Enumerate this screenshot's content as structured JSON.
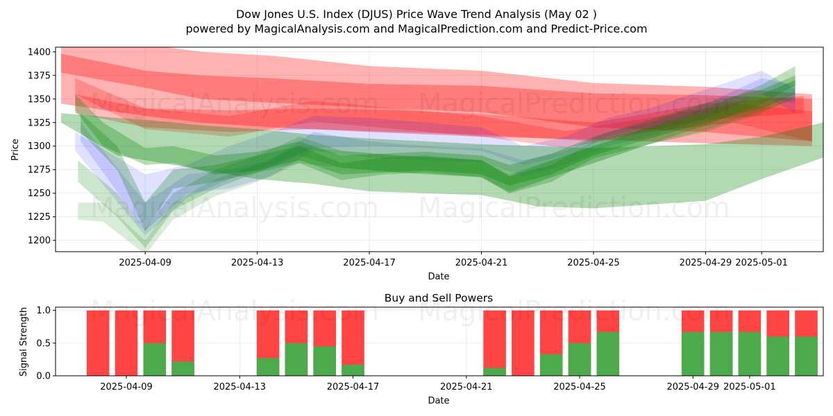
{
  "chart_data": [
    {
      "type": "area",
      "title_line1": "Dow Jones U.S. Index (DJUS) Price Wave Trend Analysis (May 02 )",
      "title_line2": "powered by MagicalAnalysis.com and MagicalPrediction.com and Predict-Price.com",
      "xlabel": "Date",
      "ylabel": "Price",
      "ylim": [
        1188,
        1405
      ],
      "yticks": [
        1200,
        1225,
        1250,
        1275,
        1300,
        1325,
        1350,
        1375,
        1400
      ],
      "x_range_days": [
        -3.2,
        24.2
      ],
      "xticks": [
        {
          "day": 0,
          "label": "2025-04-09"
        },
        {
          "day": 4,
          "label": "2025-04-13"
        },
        {
          "day": 8,
          "label": "2025-04-17"
        },
        {
          "day": 12,
          "label": "2025-04-21"
        },
        {
          "day": 16,
          "label": "2025-04-25"
        },
        {
          "day": 20,
          "label": "2025-04-29"
        },
        {
          "day": 22,
          "label": "2025-05-01"
        }
      ],
      "watermarks": [
        "MagicalAnalysis.com",
        "MagicalPrediction.com"
      ],
      "bands": [
        {
          "color": "#ff0000",
          "opacity": 0.3,
          "x": [
            -3,
            0,
            2,
            4.5,
            8,
            12,
            16,
            20,
            23.8
          ],
          "upper": [
            1412,
            1408,
            1400,
            1396,
            1385,
            1380,
            1367,
            1363,
            1355
          ],
          "lower": [
            1378,
            1362,
            1350,
            1346,
            1341,
            1336,
            1320,
            1315,
            1305
          ]
        },
        {
          "color": "#ff0000",
          "opacity": 0.3,
          "x": [
            -3,
            0,
            2,
            4.5,
            8,
            12,
            16,
            20,
            23.8
          ],
          "upper": [
            1398,
            1380,
            1375,
            1372,
            1366,
            1364,
            1356,
            1354,
            1350
          ],
          "lower": [
            1345,
            1332,
            1325,
            1320,
            1315,
            1310,
            1307,
            1303,
            1300
          ]
        },
        {
          "color": "#ff0000",
          "opacity": 0.25,
          "x": [
            -2.5,
            0,
            3,
            6,
            9,
            12,
            16,
            20,
            23.5
          ],
          "upper": [
            1355,
            1340,
            1338,
            1340,
            1338,
            1334,
            1325,
            1345,
            1353
          ],
          "lower": [
            1335,
            1320,
            1315,
            1318,
            1315,
            1312,
            1305,
            1328,
            1335
          ]
        },
        {
          "color": "#ff0000",
          "opacity": 0.22,
          "x": [
            -2.5,
            0,
            3,
            6,
            9,
            12,
            15,
            18,
            21,
            23.8
          ],
          "upper": [
            1372,
            1340,
            1332,
            1348,
            1340,
            1332,
            1316,
            1330,
            1345,
            1337
          ],
          "lower": [
            1355,
            1318,
            1310,
            1326,
            1318,
            1310,
            1298,
            1315,
            1325,
            1305
          ]
        },
        {
          "color": "#0000ff",
          "opacity": 0.12,
          "x": [
            -2.5,
            0,
            1.5,
            3,
            4.5,
            6,
            8,
            10,
            12,
            13.5,
            15,
            16.5,
            18,
            20,
            22,
            23.2
          ],
          "upper": [
            1315,
            1270,
            1280,
            1300,
            1315,
            1332,
            1330,
            1325,
            1320,
            1300,
            1310,
            1330,
            1340,
            1360,
            1380,
            1360
          ],
          "lower": [
            1295,
            1205,
            1245,
            1265,
            1280,
            1298,
            1300,
            1298,
            1295,
            1280,
            1290,
            1310,
            1320,
            1335,
            1355,
            1335
          ]
        },
        {
          "color": "#0000ff",
          "opacity": 0.12,
          "x": [
            -2.3,
            0,
            1.5,
            3,
            4.5,
            6,
            8,
            10,
            12,
            13.5,
            15,
            16.5,
            18,
            20,
            22,
            23.2
          ],
          "upper": [
            1325,
            1240,
            1270,
            1275,
            1285,
            1315,
            1305,
            1300,
            1298,
            1285,
            1295,
            1315,
            1325,
            1345,
            1372,
            1365
          ],
          "lower": [
            1305,
            1210,
            1250,
            1255,
            1268,
            1295,
            1288,
            1285,
            1283,
            1268,
            1280,
            1300,
            1310,
            1330,
            1355,
            1345
          ]
        },
        {
          "color": "#008000",
          "opacity": 0.3,
          "x": [
            -3,
            -1,
            0,
            2,
            4,
            6,
            8,
            10,
            12,
            14,
            16,
            18,
            20,
            22,
            24.2
          ],
          "upper": [
            1335,
            1330,
            1328,
            1322,
            1318,
            1312,
            1308,
            1305,
            1302,
            1300,
            1298,
            1300,
            1302,
            1310,
            1325
          ],
          "lower": [
            1325,
            1290,
            1285,
            1275,
            1265,
            1260,
            1252,
            1250,
            1248,
            1236,
            1234,
            1238,
            1242,
            1265,
            1288
          ]
        },
        {
          "color": "#008000",
          "opacity": 0.28,
          "x": [
            -2.5,
            -1.5,
            0,
            1,
            2.5,
            4,
            5.5,
            7,
            8.5,
            10,
            12,
            13,
            14.5,
            16,
            18,
            20,
            22,
            23.2
          ],
          "upper": [
            1355,
            1325,
            1298,
            1300,
            1290,
            1294,
            1305,
            1290,
            1292,
            1294,
            1290,
            1280,
            1292,
            1310,
            1328,
            1346,
            1360,
            1375
          ],
          "lower": [
            1338,
            1300,
            1280,
            1282,
            1270,
            1274,
            1285,
            1270,
            1272,
            1274,
            1270,
            1258,
            1270,
            1290,
            1308,
            1325,
            1340,
            1355
          ]
        },
        {
          "color": "#008000",
          "opacity": 0.25,
          "x": [
            -2.3,
            -1,
            0,
            1,
            2.5,
            4,
            5.5,
            7,
            8.5,
            10,
            12,
            13,
            14.5,
            16,
            18,
            20,
            22,
            23.2
          ],
          "upper": [
            1335,
            1300,
            1240,
            1275,
            1280,
            1290,
            1300,
            1282,
            1288,
            1290,
            1285,
            1268,
            1280,
            1305,
            1320,
            1340,
            1365,
            1385
          ],
          "lower": [
            1315,
            1275,
            1210,
            1255,
            1262,
            1272,
            1282,
            1264,
            1270,
            1272,
            1267,
            1250,
            1262,
            1287,
            1302,
            1322,
            1345,
            1365
          ]
        },
        {
          "color": "#008000",
          "opacity": 0.2,
          "x": [
            -2.4,
            -1,
            0,
            1,
            2.5,
            4,
            5.5,
            7,
            9,
            12,
            13,
            14.5,
            16,
            18,
            20,
            22,
            23.2
          ],
          "upper": [
            1285,
            1250,
            1212,
            1250,
            1275,
            1290,
            1310,
            1295,
            1290,
            1285,
            1270,
            1285,
            1300,
            1320,
            1335,
            1355,
            1370
          ],
          "lower": [
            1262,
            1225,
            1192,
            1232,
            1255,
            1272,
            1290,
            1277,
            1272,
            1267,
            1252,
            1267,
            1282,
            1302,
            1315,
            1335,
            1352
          ]
        },
        {
          "color": "#008000",
          "opacity": 0.15,
          "x": [
            -2.4,
            -1.5,
            0,
            1,
            2.5,
            4,
            5.5,
            7,
            9,
            12,
            13,
            14.5,
            16,
            18,
            20,
            22,
            23.2
          ],
          "upper": [
            1240,
            1240,
            1200,
            1240,
            1265,
            1280,
            1300,
            1295,
            1290,
            1285,
            1268,
            1285,
            1300,
            1320,
            1335,
            1355,
            1370
          ],
          "lower": [
            1222,
            1220,
            1185,
            1222,
            1247,
            1262,
            1282,
            1277,
            1272,
            1267,
            1250,
            1267,
            1282,
            1302,
            1317,
            1337,
            1350
          ]
        }
      ]
    },
    {
      "type": "bar",
      "title": "Buy and Sell Powers",
      "xlabel": "Date",
      "ylabel": "Signal Strength",
      "ylim": [
        0,
        1.05
      ],
      "yticks": [
        {
          "value": 0,
          "label": "0.0"
        },
        {
          "value": 0.5,
          "label": "0.5"
        },
        {
          "value": 1,
          "label": "1.0"
        }
      ],
      "x_range_days": [
        -2.5,
        24.6
      ],
      "xticks": [
        {
          "day": 0,
          "label": "2025-04-09"
        },
        {
          "day": 4,
          "label": "2025-04-13"
        },
        {
          "day": 8,
          "label": "2025-04-17"
        },
        {
          "day": 12,
          "label": "2025-04-21"
        },
        {
          "day": 16,
          "label": "2025-04-25"
        },
        {
          "day": 20,
          "label": "2025-04-29"
        },
        {
          "day": 22,
          "label": "2025-05-01"
        }
      ],
      "buy_color": "#4caa4c",
      "sell_color": "#ff4444",
      "days": [
        -1,
        0,
        1,
        2,
        5,
        6,
        7,
        8,
        13,
        14,
        15,
        16,
        17,
        20,
        21,
        22,
        23,
        24
      ],
      "buy": [
        0,
        0,
        0.5,
        0.22,
        0.27,
        0.5,
        0.45,
        0.17,
        0.12,
        0,
        0.33,
        0.5,
        0.67,
        0.67,
        0.67,
        0.67,
        0.6,
        0.6
      ],
      "total": [
        1,
        1,
        1,
        1,
        1,
        1,
        1,
        1,
        1,
        1,
        1,
        1,
        1,
        1,
        1,
        1,
        1,
        1
      ]
    }
  ]
}
